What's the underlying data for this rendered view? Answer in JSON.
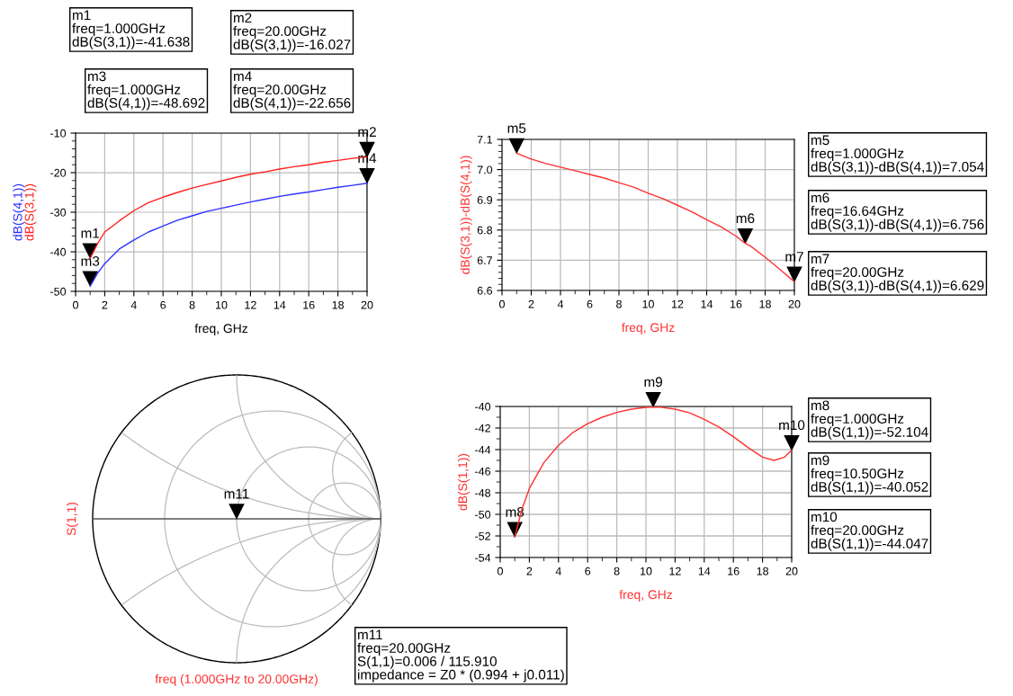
{
  "chart_data": [
    {
      "type": "line",
      "xlabel": "freq, GHz",
      "xlim": [
        0,
        20
      ],
      "xticks": [
        0,
        2,
        4,
        6,
        8,
        10,
        12,
        14,
        16,
        18,
        20
      ],
      "ylim": [
        -50,
        -10
      ],
      "yticks": [
        -50,
        -40,
        -30,
        -20,
        -10
      ],
      "grid": true,
      "series": [
        {
          "name": "dB(S(3,1))",
          "color": "#ff2020",
          "x": [
            1,
            1.5,
            2,
            3,
            4,
            5,
            6,
            7,
            8,
            9,
            10,
            11,
            12,
            13,
            14,
            15,
            16,
            17,
            18,
            19,
            20
          ],
          "values": [
            -41.638,
            -38,
            -35,
            -32.2,
            -29.6,
            -27.6,
            -26.2,
            -25,
            -23.9,
            -23,
            -22.1,
            -21.2,
            -20.4,
            -19.8,
            -19.1,
            -18.5,
            -18,
            -17.4,
            -16.9,
            -16.4,
            -16.027
          ]
        },
        {
          "name": "dB(S(4,1))",
          "color": "#3030ff",
          "x": [
            1,
            1.5,
            2,
            3,
            4,
            5,
            6,
            7,
            8,
            9,
            10,
            11,
            12,
            13,
            14,
            15,
            16,
            17,
            18,
            19,
            20
          ],
          "values": [
            -48.692,
            -45.5,
            -43,
            -39.3,
            -37,
            -35,
            -33.5,
            -32,
            -30.9,
            -29.8,
            -29,
            -28.2,
            -27.4,
            -26.7,
            -26,
            -25.4,
            -24.9,
            -24.3,
            -23.7,
            -23.2,
            -22.656
          ]
        }
      ],
      "annotations": [
        {
          "text": "m1",
          "x": 1,
          "y": -41.638
        },
        {
          "text": "m2",
          "x": 20,
          "y": -16.027
        },
        {
          "text": "m3",
          "x": 1,
          "y": -48.692
        },
        {
          "text": "m4",
          "x": 20,
          "y": -22.656
        },
        "m1\nfreq=1.000GHz\ndB(S(3,1))=-41.638",
        "m2\nfreq=20.00GHz\ndB(S(3,1))=-16.027",
        "m3\nfreq=1.000GHz\ndB(S(4,1))=-48.692",
        "m4\nfreq=20.00GHz\ndB(S(4,1))=-22.656"
      ]
    },
    {
      "type": "line",
      "xlabel": "freq, GHz",
      "ylabel": "dB(S(3,1))-dB(S(4,1))",
      "xlim": [
        0,
        20
      ],
      "xticks": [
        0,
        2,
        4,
        6,
        8,
        10,
        12,
        14,
        16,
        18,
        20
      ],
      "ylim": [
        6.6,
        7.1
      ],
      "yticks": [
        {
          "value": 6.6,
          "label": "6.6"
        },
        {
          "value": 6.7,
          "label": "6.7"
        },
        {
          "value": 6.8,
          "label": "6.8"
        },
        {
          "value": 6.9,
          "label": "6.9"
        },
        {
          "value": 7.0,
          "label": "7.0"
        },
        {
          "value": 7.1,
          "label": "7.1"
        }
      ],
      "grid": true,
      "series": [
        {
          "color": "#ff3030",
          "x": [
            1,
            2,
            3,
            4,
            5,
            6,
            7,
            8,
            9,
            10,
            11,
            12,
            13,
            14,
            15,
            16,
            16.64,
            17,
            18,
            19,
            20
          ],
          "values": [
            7.054,
            7.035,
            7.02,
            7.008,
            6.996,
            6.984,
            6.972,
            6.957,
            6.942,
            6.922,
            6.904,
            6.882,
            6.86,
            6.834,
            6.81,
            6.78,
            6.756,
            6.747,
            6.71,
            6.67,
            6.629
          ]
        }
      ],
      "annotations": [
        {
          "text": "m5",
          "x": 1,
          "y": 7.054
        },
        {
          "text": "m6",
          "x": 16.64,
          "y": 6.756
        },
        {
          "text": "m7",
          "x": 20,
          "y": 6.629
        },
        "m5\nfreq=1.000GHz\ndB(S(3,1))-dB(S(4,1))=7.054",
        "m6\nfreq=16.64GHz\ndB(S(3,1))-dB(S(4,1))=6.756",
        "m7\nfreq=20.00GHz\ndB(S(3,1))-dB(S(4,1))=6.629"
      ]
    },
    {
      "type": "other",
      "xlabel": "freq (1.000GHz to 20.00GHz)",
      "ylabel": "S(1,1)",
      "annotations": [
        "m11",
        "m11\nfreq=20.00GHz\nS(1,1)=0.006 / 115.910\nimpedance = Z0 * (0.994 + j0.011)"
      ]
    },
    {
      "type": "line",
      "xlabel": "freq, GHz",
      "ylabel": "dB(S(1,1))",
      "xlim": [
        0,
        20
      ],
      "xticks": [
        0,
        2,
        4,
        6,
        8,
        10,
        12,
        14,
        16,
        18,
        20
      ],
      "ylim": [
        -54,
        -40
      ],
      "yticks": [
        -54,
        -52,
        -50,
        -48,
        -46,
        -44,
        -42,
        -40
      ],
      "grid": true,
      "series": [
        {
          "color": "#ff3030",
          "x": [
            1,
            1.5,
            2,
            3,
            4,
            5,
            6,
            7,
            8,
            9,
            10,
            10.5,
            11,
            12,
            13,
            14,
            15,
            16,
            17,
            18,
            18.8,
            19.5,
            20
          ],
          "values": [
            -52.104,
            -49.5,
            -47.6,
            -45.2,
            -43.6,
            -42.4,
            -41.6,
            -41.0,
            -40.55,
            -40.25,
            -40.08,
            -40.052,
            -40.07,
            -40.25,
            -40.6,
            -41.2,
            -41.9,
            -42.8,
            -43.8,
            -44.7,
            -45.0,
            -44.7,
            -44.047
          ]
        }
      ],
      "annotations": [
        {
          "text": "m8",
          "x": 1,
          "y": -52.104
        },
        {
          "text": "m9",
          "x": 10.5,
          "y": -40.052
        },
        {
          "text": "m10",
          "x": 20,
          "y": -44.047
        },
        "m8\nfreq=1.000GHz\ndB(S(1,1))=-52.104",
        "m9\nfreq=10.50GHz\ndB(S(1,1))=-40.052",
        "m10\nfreq=20.00GHz\ndB(S(1,1))=-44.047"
      ]
    }
  ]
}
